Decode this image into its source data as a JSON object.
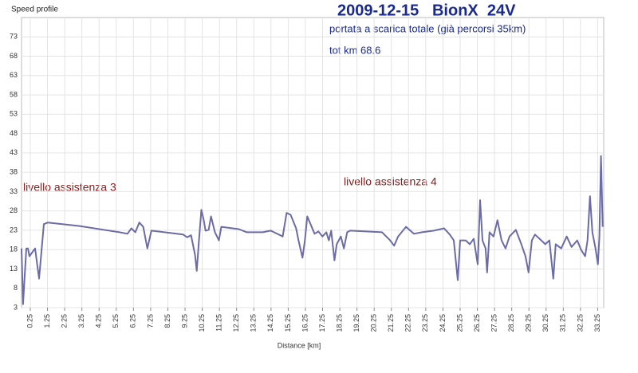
{
  "chart_data": {
    "type": "line",
    "corner_label": "Speed profile",
    "title": "2009-12-15   BionX  24V",
    "subtitle": "portata a scarica totale (già percorsi 35km)",
    "subtitle2": "tot km 68.6",
    "annotations": [
      "livello assistenza 3",
      "livello assistenza 4"
    ],
    "x_label": "Distance [km]",
    "color": "#6b6ba6",
    "grid": true,
    "xlim": [
      -0.26,
      33.6
    ],
    "ylim": [
      3,
      78
    ],
    "yticks": [
      3,
      8,
      13,
      18,
      23,
      28,
      33,
      38,
      43,
      48,
      53,
      58,
      63,
      68,
      73
    ],
    "xticks": [
      0.25,
      1.25,
      2.25,
      3.25,
      4.25,
      5.25,
      6.25,
      7.25,
      8.25,
      9.25,
      10.25,
      11.25,
      12.25,
      13.25,
      14.25,
      15.25,
      16.25,
      17.25,
      18.25,
      19.25,
      20.25,
      21.25,
      22.25,
      23.25,
      24.25,
      25.25,
      26.25,
      27.25,
      28.25,
      29.25,
      30.25,
      31.25,
      32.25,
      33.25
    ],
    "x": [
      -0.26,
      -0.17,
      0.02,
      0.11,
      0.2,
      0.53,
      0.76,
      1.04,
      1.27,
      3.12,
      5.44,
      5.9,
      6.13,
      6.36,
      6.59,
      6.82,
      7.06,
      7.29,
      9.14,
      9.37,
      9.6,
      9.83,
      9.93,
      10.06,
      10.2,
      10.34,
      10.44,
      10.62,
      10.76,
      10.99,
      11.22,
      11.36,
      12.38,
      12.84,
      13.77,
      14.23,
      14.93,
      15.16,
      15.39,
      15.71,
      15.85,
      16.08,
      16.22,
      16.36,
      16.55,
      16.78,
      17.01,
      17.24,
      17.47,
      17.61,
      17.75,
      17.94,
      18.07,
      18.31,
      18.49,
      18.68,
      18.86,
      20.71,
      21.18,
      21.41,
      21.64,
      22.1,
      22.56,
      23.03,
      23.72,
      24.32,
      24.65,
      24.88,
      25.11,
      25.25,
      25.57,
      25.81,
      26.04,
      26.27,
      26.41,
      26.55,
      26.73,
      26.82,
      26.96,
      27.19,
      27.42,
      27.66,
      27.89,
      28.12,
      28.49,
      28.81,
      29.05,
      29.23,
      29.42,
      29.6,
      29.97,
      30.2,
      30.44,
      30.67,
      30.81,
      31.13,
      31.45,
      31.73,
      32.06,
      32.29,
      32.52,
      32.66,
      32.8,
      32.94,
      33.12,
      33.26,
      33.35,
      33.44,
      33.54
    ],
    "values": [
      18.3,
      3.9,
      18.3,
      18.3,
      16.3,
      18.3,
      10.5,
      24.6,
      25.0,
      24.1,
      22.5,
      22.1,
      23.5,
      22.5,
      25.0,
      23.9,
      18.3,
      22.9,
      21.9,
      21.2,
      21.7,
      16.7,
      12.5,
      20.4,
      28.3,
      25.6,
      22.9,
      23.1,
      26.6,
      22.5,
      20.4,
      23.9,
      23.3,
      22.5,
      22.5,
      22.9,
      21.4,
      27.5,
      27.0,
      23.5,
      20.4,
      15.9,
      20.4,
      26.6,
      24.6,
      22.1,
      22.7,
      21.4,
      22.5,
      20.4,
      22.9,
      15.2,
      19.4,
      21.4,
      18.3,
      22.5,
      22.9,
      22.5,
      20.4,
      19.0,
      21.4,
      23.9,
      22.1,
      22.5,
      22.9,
      23.5,
      21.9,
      20.4,
      10.1,
      20.4,
      20.4,
      19.4,
      20.8,
      14.2,
      30.8,
      20.4,
      18.3,
      12.1,
      22.5,
      21.4,
      25.6,
      20.4,
      18.3,
      21.4,
      23.1,
      19.4,
      16.3,
      12.1,
      20.4,
      21.9,
      20.4,
      19.4,
      20.4,
      10.5,
      19.4,
      18.3,
      21.4,
      18.7,
      20.4,
      17.9,
      16.3,
      20.4,
      31.8,
      22.5,
      18.3,
      14.2,
      21.4,
      42.2,
      23.9
    ]
  }
}
